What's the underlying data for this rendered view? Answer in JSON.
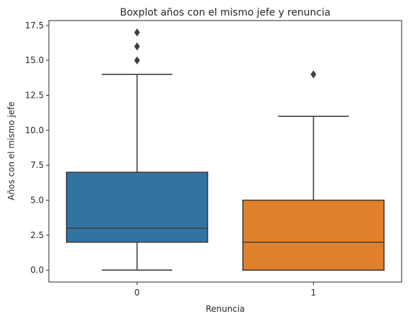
{
  "chart_data": {
    "type": "box",
    "title": "Boxplot años con el mismo jefe y renuncia",
    "xlabel": "Renuncia",
    "ylabel": "Años con el mismo jefe",
    "categories": [
      "0",
      "1"
    ],
    "ylim": [
      -0.85,
      17.85
    ],
    "yticks": [
      0.0,
      2.5,
      5.0,
      7.5,
      10.0,
      12.5,
      15.0,
      17.5
    ],
    "ytick_labels": [
      "0.0",
      "2.5",
      "5.0",
      "7.5",
      "10.0",
      "12.5",
      "15.0",
      "17.5"
    ],
    "grid": false,
    "legend": "none",
    "boxes": [
      {
        "category": "0",
        "whisker_low": 0,
        "q1": 2,
        "median": 3,
        "q3": 7,
        "whisker_high": 14,
        "outliers": [
          15,
          16,
          17
        ],
        "color": "#3274a1"
      },
      {
        "category": "1",
        "whisker_low": 0,
        "q1": 0,
        "median": 2,
        "q3": 5,
        "whisker_high": 11,
        "outliers": [
          14
        ],
        "color": "#e1812c"
      }
    ]
  }
}
